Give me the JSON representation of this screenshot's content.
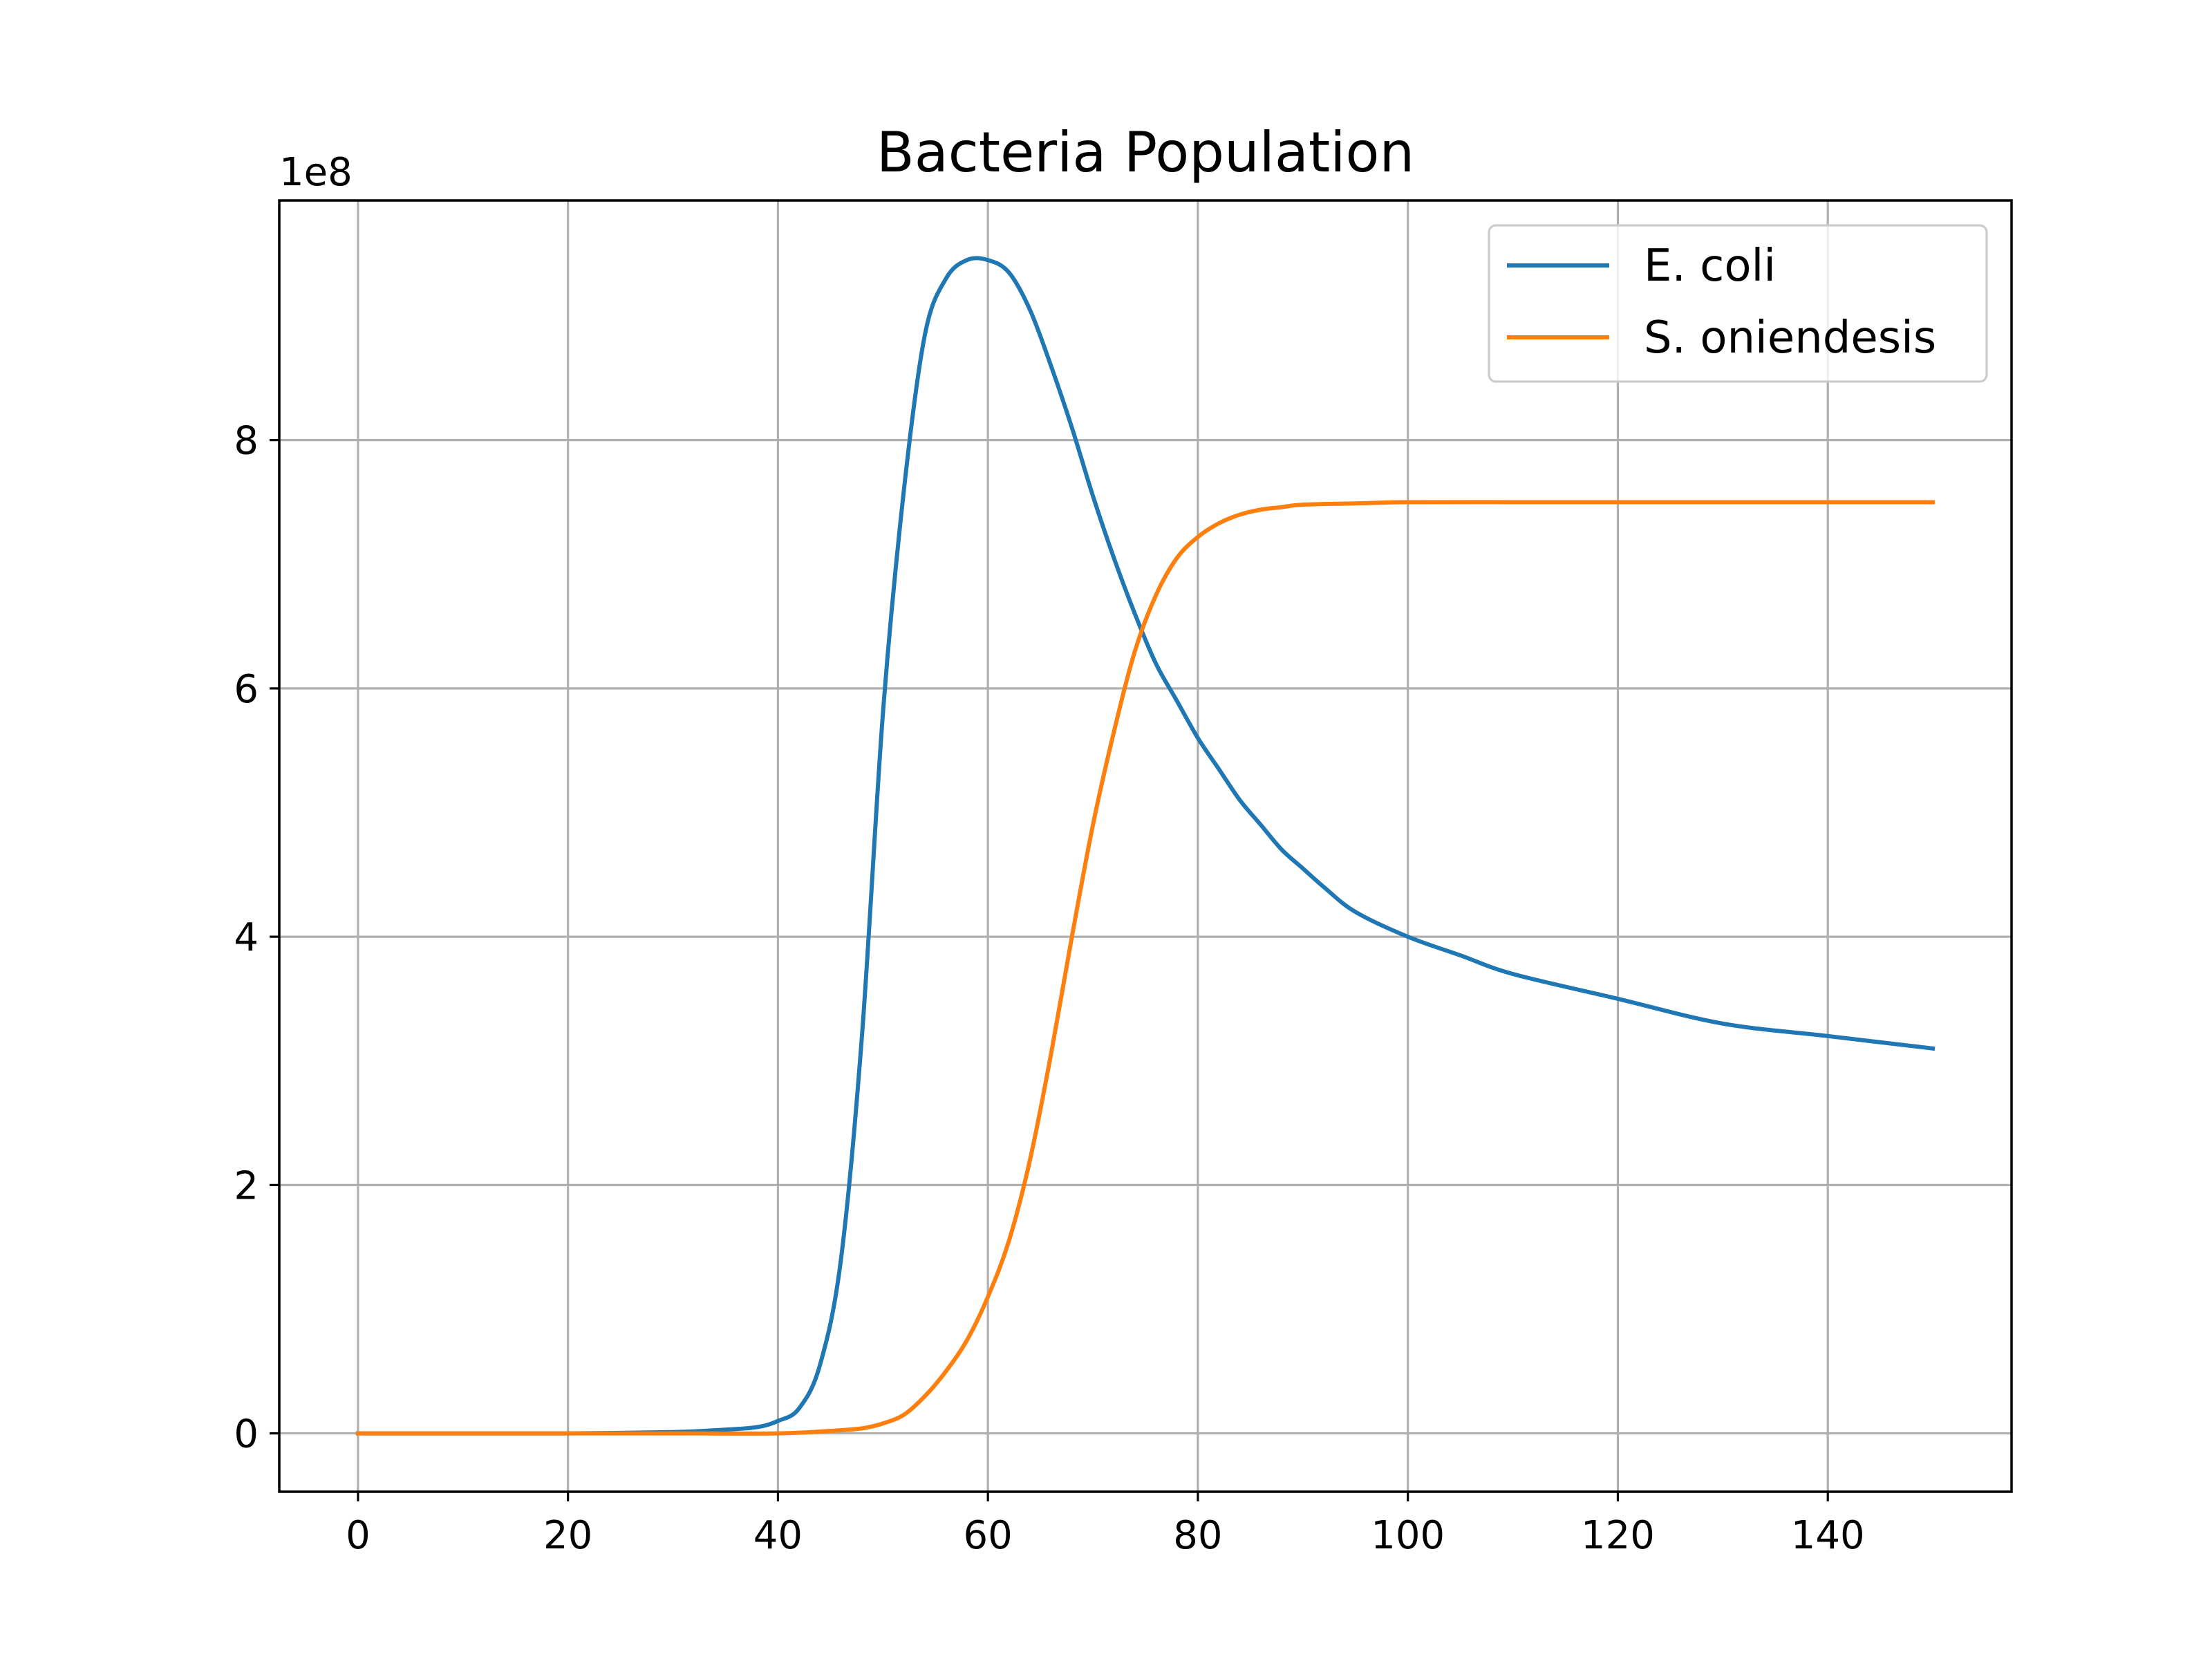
{
  "chart_data": {
    "type": "line",
    "title": "Bacteria Population",
    "xlabel": "",
    "ylabel": "",
    "y_offset_label": "1e8",
    "xlim": [
      -7.5,
      157.5
    ],
    "ylim": [
      -0.47,
      9.93
    ],
    "y_scale_factor": 100000000,
    "xticks": [
      0,
      20,
      40,
      60,
      80,
      100,
      120,
      140
    ],
    "yticks": [
      0,
      2,
      4,
      6,
      8
    ],
    "grid": true,
    "legend_position": "top-right",
    "series": [
      {
        "name": "E. coli",
        "color": "#1f77b4",
        "x": [
          0,
          10,
          20,
          30,
          35,
          38,
          40,
          42,
          44,
          46,
          48,
          50,
          52,
          54,
          56,
          58,
          60,
          62,
          64,
          66,
          68,
          70,
          72,
          74,
          76,
          78,
          80,
          82,
          84,
          86,
          88,
          90,
          92,
          95,
          100,
          105,
          110,
          120,
          130,
          140,
          150
        ],
        "y": [
          0,
          0,
          0,
          0.01,
          0.03,
          0.05,
          0.1,
          0.2,
          0.55,
          1.4,
          3.2,
          5.8,
          7.6,
          8.85,
          9.3,
          9.45,
          9.45,
          9.35,
          9.05,
          8.6,
          8.1,
          7.55,
          7.05,
          6.6,
          6.2,
          5.9,
          5.6,
          5.35,
          5.1,
          4.9,
          4.7,
          4.55,
          4.4,
          4.2,
          4.0,
          3.85,
          3.7,
          3.5,
          3.3,
          3.2,
          3.1
        ]
      },
      {
        "name": "S. oniendesis",
        "color": "#ff7f0e",
        "x": [
          0,
          10,
          20,
          30,
          40,
          45,
          48,
          50,
          52,
          54,
          56,
          58,
          60,
          62,
          64,
          66,
          68,
          70,
          72,
          74,
          76,
          78,
          80,
          82,
          84,
          86,
          88,
          90,
          95,
          100,
          110,
          120,
          130,
          140,
          150
        ],
        "y": [
          0,
          0,
          0,
          0,
          0,
          0.02,
          0.04,
          0.08,
          0.15,
          0.3,
          0.5,
          0.75,
          1.1,
          1.55,
          2.2,
          3.05,
          4.0,
          4.9,
          5.65,
          6.3,
          6.75,
          7.05,
          7.22,
          7.33,
          7.4,
          7.44,
          7.46,
          7.48,
          7.49,
          7.5,
          7.5,
          7.5,
          7.5,
          7.5,
          7.5
        ]
      }
    ]
  }
}
